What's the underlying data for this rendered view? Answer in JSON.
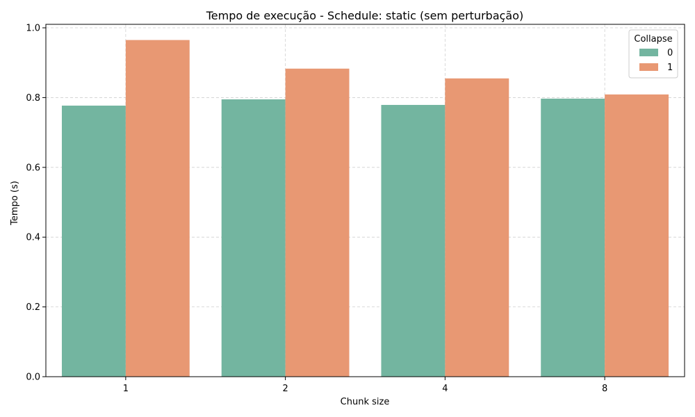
{
  "chart_data": {
    "type": "bar",
    "title": "Tempo de execução - Schedule: static (sem perturbação)",
    "xlabel": "Chunk size",
    "ylabel": "Tempo (s)",
    "categories": [
      "1",
      "2",
      "4",
      "8"
    ],
    "ylim": [
      0,
      1.01
    ],
    "yticks": [
      0.0,
      0.2,
      0.4,
      0.6,
      0.8,
      1.0
    ],
    "ytick_labels": [
      "0.0",
      "0.2",
      "0.4",
      "0.6",
      "0.8",
      "1.0"
    ],
    "grid": true,
    "legend": {
      "title": "Collapse",
      "placement": "top-right"
    },
    "series": [
      {
        "name": "0",
        "color": "#73b5a0",
        "values": [
          0.777,
          0.795,
          0.779,
          0.797
        ]
      },
      {
        "name": "1",
        "color": "#e89873",
        "values": [
          0.965,
          0.883,
          0.855,
          0.809
        ]
      }
    ]
  }
}
